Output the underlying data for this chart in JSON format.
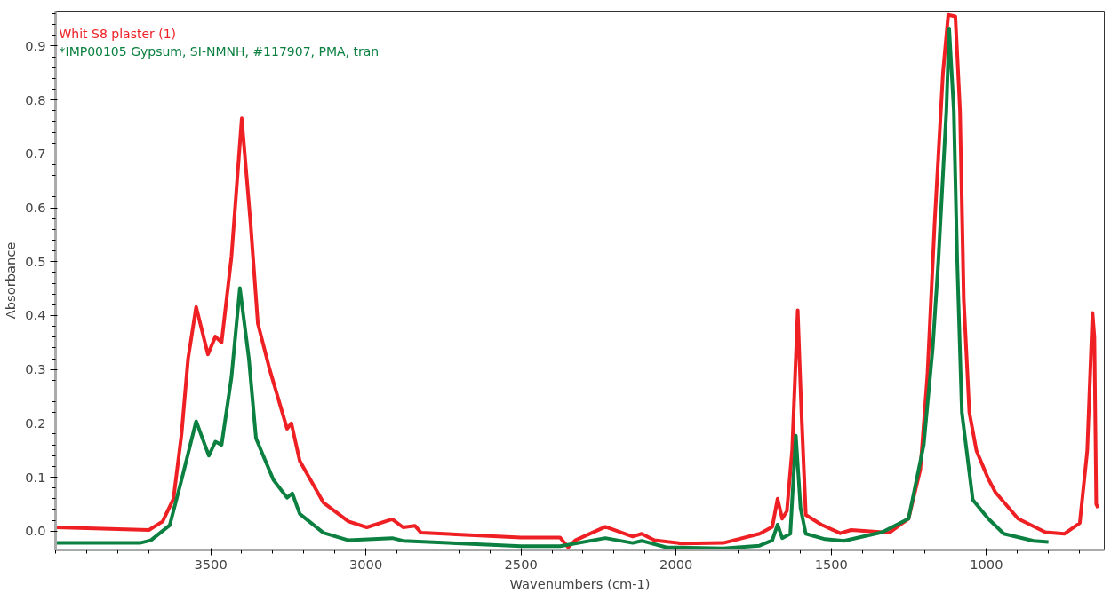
{
  "chart_data": {
    "type": "line",
    "xlabel": "Wavenumbers (cm-1)",
    "ylabel": "Absorbance",
    "xlim": [
      4000,
      620
    ],
    "ylim": [
      -0.035,
      0.965
    ],
    "xticks": [
      3500,
      3000,
      2500,
      2000,
      1500,
      1000
    ],
    "yticks": [
      {
        "value": 0,
        "label": "0.0"
      },
      0.1,
      0.2,
      0.3,
      0.4,
      0.5,
      0.6,
      0.7,
      0.8,
      0.9
    ],
    "grid": false,
    "legend": "top left",
    "marker": "none",
    "line_style": "solid",
    "series": [
      {
        "name": "Whit S8 plaster (1)",
        "color": "#ee2024",
        "x": [
          4000,
          3699,
          3655,
          3620,
          3594,
          3573,
          3547,
          3509,
          3485,
          3465,
          3433,
          3400,
          3371,
          3348,
          3310,
          3254,
          3240,
          3213,
          3137,
          3056,
          2997,
          2915,
          2880,
          2842,
          2822,
          2500,
          2374,
          2348,
          2325,
          2228,
          2140,
          2111,
          2070,
          1982,
          1848,
          1731,
          1690,
          1673,
          1658,
          1643,
          1626,
          1608,
          1596,
          1582,
          1532,
          1471,
          1436,
          1313,
          1251,
          1213,
          1190,
          1167,
          1140,
          1123,
          1100,
          1085,
          1073,
          1055,
          1032,
          994,
          971,
          898,
          810,
          749,
          699,
          675,
          658,
          652,
          646,
          640
        ],
        "values": [
          0.007,
          0.002,
          0.018,
          0.06,
          0.18,
          0.32,
          0.416,
          0.328,
          0.361,
          0.35,
          0.51,
          0.766,
          0.567,
          0.385,
          0.3,
          0.19,
          0.2,
          0.13,
          0.053,
          0.018,
          0.007,
          0.022,
          0.007,
          0.01,
          -0.003,
          -0.012,
          -0.012,
          -0.03,
          -0.017,
          0.008,
          -0.01,
          -0.005,
          -0.017,
          -0.023,
          -0.022,
          -0.005,
          0.008,
          0.06,
          0.023,
          0.037,
          0.15,
          0.41,
          0.22,
          0.03,
          0.012,
          -0.004,
          0.002,
          -0.003,
          0.023,
          0.114,
          0.29,
          0.57,
          0.85,
          0.958,
          0.955,
          0.78,
          0.43,
          0.22,
          0.149,
          0.097,
          0.072,
          0.023,
          -0.002,
          -0.005,
          0.015,
          0.149,
          0.405,
          0.36,
          0.05,
          0.043
        ]
      },
      {
        "name": "*IMP00105 Gypsum, SI-NMNH, #117907, PMA, tran",
        "color": "#0b8040",
        "x": [
          4000,
          3728,
          3693,
          3632,
          3594,
          3547,
          3506,
          3485,
          3465,
          3433,
          3406,
          3377,
          3354,
          3298,
          3254,
          3237,
          3213,
          3137,
          3056,
          2915,
          2880,
          2500,
          2374,
          2228,
          2140,
          2111,
          2032,
          1848,
          1731,
          1690,
          1673,
          1658,
          1632,
          1614,
          1599,
          1582,
          1520,
          1459,
          1336,
          1251,
          1202,
          1173,
          1155,
          1129,
          1120,
          1105,
          1094,
          1079,
          1044,
          994,
          944,
          848,
          800
        ],
        "values": [
          -0.022,
          -0.022,
          -0.017,
          0.011,
          0.095,
          0.204,
          0.14,
          0.166,
          0.16,
          0.286,
          0.451,
          0.32,
          0.172,
          0.095,
          0.062,
          0.07,
          0.032,
          -0.003,
          -0.017,
          -0.013,
          -0.018,
          -0.028,
          -0.028,
          -0.013,
          -0.022,
          -0.018,
          -0.03,
          -0.032,
          -0.027,
          -0.017,
          0.012,
          -0.013,
          -0.005,
          0.177,
          0.043,
          -0.005,
          -0.015,
          -0.018,
          -0.002,
          0.023,
          0.16,
          0.34,
          0.5,
          0.78,
          0.933,
          0.78,
          0.5,
          0.22,
          0.058,
          0.023,
          -0.005,
          -0.018,
          -0.02
        ]
      }
    ]
  }
}
